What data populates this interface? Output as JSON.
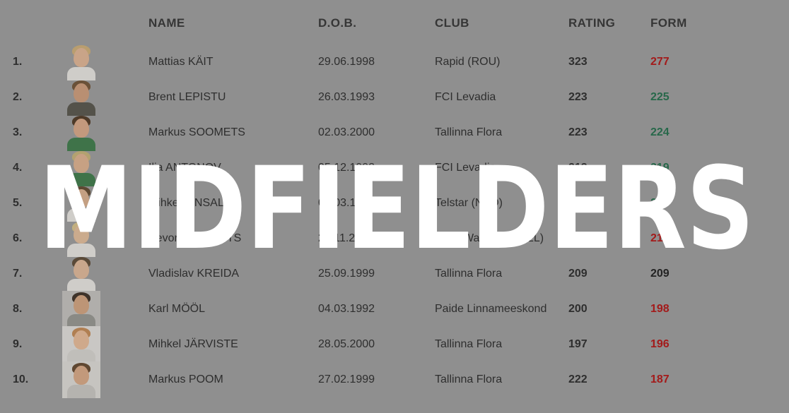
{
  "page": {
    "background_color": "#8f8f8f",
    "watermark": {
      "text": "MIDFIELDERS",
      "color": "#ffffff"
    }
  },
  "table": {
    "columns": {
      "name": "NAME",
      "dob": "D.O.B.",
      "club": "CLUB",
      "rating": "RATING",
      "form": "FORM"
    },
    "value_colors": {
      "up": "#27684a",
      "down": "#a31a1a",
      "flat": "#222222"
    },
    "rows": [
      {
        "rank": "1.",
        "name": "Mattias KÄIT",
        "dob": "29.06.1998",
        "club": "Rapid (ROU)",
        "rating": "323",
        "form": "277",
        "form_trend": "down",
        "avatar": {
          "bg": "",
          "skin": "#c9a488",
          "hair": "#b99e6f",
          "shirt": "#cfcdc9"
        }
      },
      {
        "rank": "2.",
        "name": "Brent LEPISTU",
        "dob": "26.03.1993",
        "club": "FCI Levadia",
        "rating": "223",
        "form": "225",
        "form_trend": "up",
        "avatar": {
          "bg": "",
          "skin": "#b98f72",
          "hair": "#6a5138",
          "shirt": "#54524a"
        }
      },
      {
        "rank": "3.",
        "name": "Markus SOOMETS",
        "dob": "02.03.2000",
        "club": "Tallinna Flora",
        "rating": "223",
        "form": "224",
        "form_trend": "up",
        "avatar": {
          "bg": "",
          "skin": "#c3997d",
          "hair": "#4e3a28",
          "shirt": "#3f7349"
        }
      },
      {
        "rank": "4.",
        "name": "Ilja ANTONOV",
        "dob": "05.12.1992",
        "club": "FCI Levadia",
        "rating": "213",
        "form": "219",
        "form_trend": "up",
        "avatar": {
          "bg": "",
          "skin": "#c7a183",
          "hair": "#b3a270",
          "shirt": "#3f7349"
        }
      },
      {
        "rank": "5.",
        "name": "Mihkel AINSALU",
        "dob": "08.03.1996",
        "club": "Telstar (NED)",
        "rating": "205",
        "form": "216",
        "form_trend": "up",
        "avatar": {
          "bg": "",
          "skin": "#c4a083",
          "hair": "#5d4832",
          "shirit": "",
          "shirt": "#cfcdc9"
        }
      },
      {
        "rank": "6.",
        "name": "Kevor PALUMETS",
        "dob": "21.11.2002",
        "club": "Zulte Waregem (BEL)",
        "rating": "201",
        "form": "210",
        "form_trend": "down",
        "avatar": {
          "bg": "",
          "skin": "#cbab8d",
          "hair": "#c2af7e",
          "shirt": "#cfcdc9"
        }
      },
      {
        "rank": "7.",
        "name": "Vladislav KREIDA",
        "dob": "25.09.1999",
        "club": "Tallinna Flora",
        "rating": "209",
        "form": "209",
        "form_trend": "flat",
        "avatar": {
          "bg": "",
          "skin": "#c9a78c",
          "hair": "#5a4a38",
          "shirt": "#cfcdc9"
        }
      },
      {
        "rank": "8.",
        "name": "Karl MÖÖL",
        "dob": "04.03.1992",
        "club": "Paide Linnameeskond",
        "rating": "200",
        "form": "198",
        "form_trend": "down",
        "avatar": {
          "bg": "#b0aeab",
          "skin": "#bd9576",
          "hair": "#3e332a",
          "shirt": "#8a8a85"
        }
      },
      {
        "rank": "9.",
        "name": "Mihkel JÄRVISTE",
        "dob": "28.05.2000",
        "club": "Tallinna Flora",
        "rating": "197",
        "form": "196",
        "form_trend": "down",
        "avatar": {
          "bg": "#c9c7c4",
          "skin": "#cfa98b",
          "hair": "#b07f52",
          "shirt": "#c0beba"
        }
      },
      {
        "rank": "10.",
        "name": "Markus POOM",
        "dob": "27.02.1999",
        "club": "Tallinna Flora",
        "rating": "222",
        "form": "187",
        "form_trend": "down",
        "avatar": {
          "bg": "#c6c4c0",
          "skin": "#c2997b",
          "hair": "#5f4731",
          "shirt": "#b5b3af"
        }
      }
    ]
  }
}
